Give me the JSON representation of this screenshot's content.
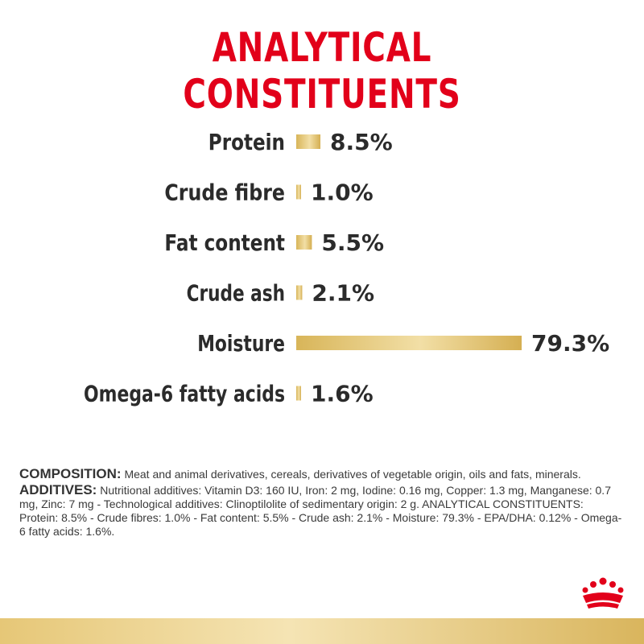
{
  "title": "ANALYTICAL CONSTITUENTS",
  "colors": {
    "title": "#e2001a",
    "bar_light": "#f5e3b0",
    "bar_dark": "#d8b559",
    "text": "#2b2b2b"
  },
  "chart_data": {
    "type": "bar",
    "orientation": "horizontal",
    "title": "ANALYTICAL CONSTITUENTS",
    "categories": [
      "Protein",
      "Crude fibre",
      "Fat content",
      "Crude ash",
      "Moisture",
      "Omega-6 fatty acids"
    ],
    "values": [
      8.5,
      1.0,
      5.5,
      2.1,
      79.3,
      1.6
    ],
    "value_labels": [
      "8.5%",
      "1.0%",
      "5.5%",
      "2.1%",
      "79.3%",
      "1.6%"
    ],
    "unit": "%",
    "xlim": [
      0,
      100
    ],
    "grid": false
  },
  "composition": {
    "label": "COMPOSITION:",
    "text": " Meat and animal derivatives, cereals, derivatives of vegetable origin, oils and fats, minerals."
  },
  "additives": {
    "label": "ADDITIVES:",
    "text": " Nutritional additives: Vitamin D3: 160 IU, Iron: 2 mg, Iodine: 0.16 mg, Copper: 1.3 mg, Manganese: 0.7 mg, Zinc: 7 mg - Technological additives: Clinoptilolite of sedimentary origin: 2 g. ANALYTICAL CONSTITUENTS: Protein: 8.5% - Crude fibres: 1.0% - Fat content: 5.5% - Crude ash: 2.1% - Moisture: 79.3% - EPA/DHA: 0.12% - Omega-6 fatty acids: 1.6%."
  },
  "logo": {
    "icon": "royal-crown-logo"
  }
}
